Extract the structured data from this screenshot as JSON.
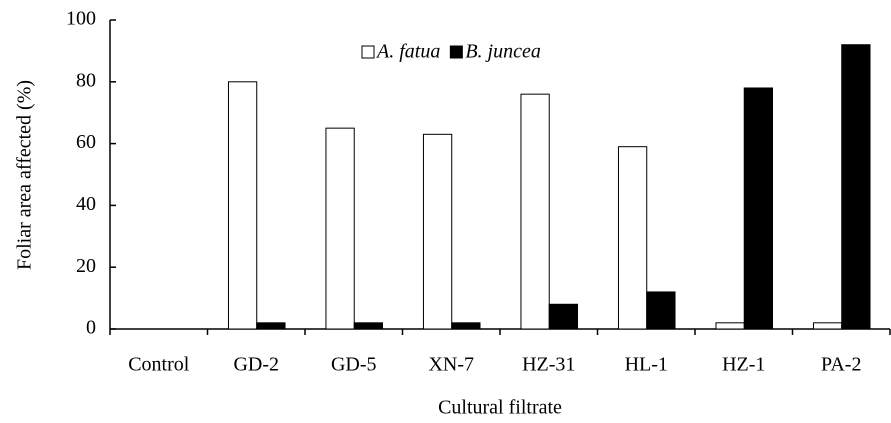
{
  "chart_data": {
    "type": "bar",
    "x_label": "Cultural filtrate",
    "y_label": "Foliar area affected (%)",
    "categories": [
      "Control",
      "GD-2",
      "GD-5",
      "XN-7",
      "HZ-31",
      "HL-1",
      "HZ-1",
      "PA-2"
    ],
    "series": [
      {
        "name": "A. fatua",
        "color": "#ffffff",
        "values": [
          0,
          80,
          65,
          63,
          76,
          59,
          2,
          2
        ]
      },
      {
        "name": "B. juncea",
        "color": "#000000",
        "values": [
          0,
          2,
          2,
          2,
          8,
          12,
          78,
          92
        ]
      }
    ],
    "ylim": [
      0,
      100
    ],
    "yticks": [
      0,
      20,
      40,
      60,
      80,
      100
    ],
    "grid": false,
    "legend": "top"
  }
}
